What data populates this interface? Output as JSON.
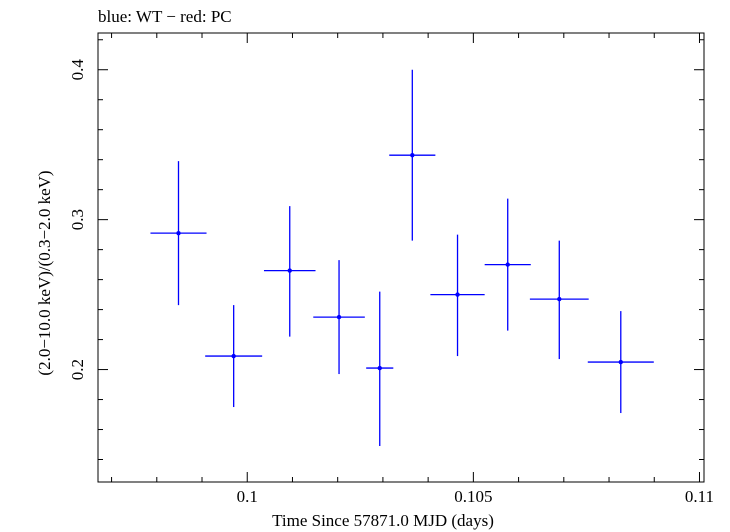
{
  "chart_data": {
    "type": "scatter",
    "title": "blue: WT − red: PC",
    "xlabel": "Time Since 57871.0 MJD (days)",
    "ylabel": "(2.0−10.0 keV)/(0.3−2.0 keV)",
    "xlim": [
      0.0967,
      0.1101
    ],
    "ylim": [
      0.125,
      0.4245
    ],
    "x_ticks": [
      {
        "value": 0.1,
        "label": "0.1"
      },
      {
        "value": 0.105,
        "label": "0.105"
      },
      {
        "value": 0.11,
        "label": "0.11"
      }
    ],
    "y_ticks": [
      {
        "value": 0.2,
        "label": "0.2"
      },
      {
        "value": 0.3,
        "label": "0.3"
      },
      {
        "value": 0.4,
        "label": "0.4"
      }
    ],
    "series": [
      {
        "name": "WT",
        "color": "#0000ff",
        "points": [
          {
            "x": 0.09848,
            "y": 0.291,
            "xerr": 0.00062,
            "ylo": 0.243,
            "yhi": 0.339
          },
          {
            "x": 0.0997,
            "y": 0.209,
            "xerr": 0.00063,
            "ylo": 0.175,
            "yhi": 0.243
          },
          {
            "x": 0.10094,
            "y": 0.266,
            "xerr": 0.00057,
            "ylo": 0.222,
            "yhi": 0.309
          },
          {
            "x": 0.10203,
            "y": 0.235,
            "xerr": 0.00057,
            "ylo": 0.197,
            "yhi": 0.273
          },
          {
            "x": 0.10293,
            "y": 0.201,
            "xerr": 0.0003,
            "ylo": 0.149,
            "yhi": 0.252
          },
          {
            "x": 0.10365,
            "y": 0.343,
            "xerr": 0.00051,
            "ylo": 0.286,
            "yhi": 0.4
          },
          {
            "x": 0.10465,
            "y": 0.25,
            "xerr": 0.0006,
            "ylo": 0.209,
            "yhi": 0.29
          },
          {
            "x": 0.10576,
            "y": 0.27,
            "xerr": 0.00051,
            "ylo": 0.226,
            "yhi": 0.314
          },
          {
            "x": 0.1069,
            "y": 0.247,
            "xerr": 0.00065,
            "ylo": 0.207,
            "yhi": 0.286
          },
          {
            "x": 0.10826,
            "y": 0.205,
            "xerr": 0.00073,
            "ylo": 0.171,
            "yhi": 0.239
          }
        ]
      }
    ]
  }
}
